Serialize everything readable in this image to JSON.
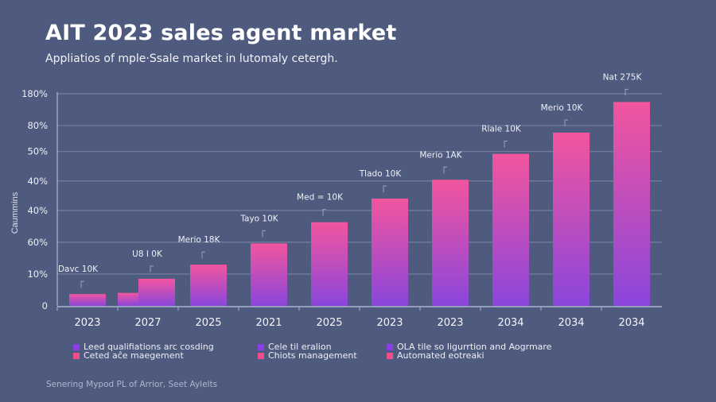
{
  "header": {
    "title": "AIT 2023 sales agent market",
    "subtitle": "Appliatios of mple·Ssale market in lutomaly cetergh."
  },
  "footer": {
    "text": "Senering Mypod PL of Arrior, Seet Aylelts"
  },
  "colors": {
    "background": "#4f5b7e",
    "bar_top": "#f2559e",
    "bar_bottom": "#8a46dc",
    "grid": "#7b86a6",
    "legend_purple": "#8a3fe6",
    "legend_pink": "#f24d8c"
  },
  "legend": [
    {
      "items": [
        {
          "label": "Leed qualifiations arc cosding",
          "color": "#8a3fe6"
        },
        {
          "label": "Ceted aĉe maegement",
          "color": "#f24d8c"
        }
      ]
    },
    {
      "items": [
        {
          "label": "Cele til eralion",
          "color": "#8a3fe6"
        },
        {
          "label": "Chiots management",
          "color": "#f24d8c"
        }
      ]
    },
    {
      "items": [
        {
          "label": "OLA tile so Iigurrtion and Aogrmare",
          "color": "#8a3fe6"
        },
        {
          "label": "Automated eotreaki",
          "color": "#f24d8c"
        }
      ]
    }
  ],
  "chart_data": {
    "type": "bar",
    "title": "AIT 2023 sales agent market",
    "subtitle": "Appliatios of mple·Ssale market in lutomaly cetergh.",
    "xlabel": "",
    "ylabel": "Caummins",
    "ylim": [
      0,
      180
    ],
    "grid": true,
    "legend_position": "bottom",
    "y_ticks": [
      {
        "label": "180%",
        "value": 180
      },
      {
        "label": "80%",
        "value": 153
      },
      {
        "label": "50%",
        "value": 131
      },
      {
        "label": "40%",
        "value": 106
      },
      {
        "label": "40%",
        "value": 81
      },
      {
        "label": "60%",
        "value": 54
      },
      {
        "label": "10%",
        "value": 27
      },
      {
        "label": "0",
        "value": 0
      }
    ],
    "categories": [
      "2023",
      "2027",
      "2025",
      "2021",
      "2025",
      "2023",
      "2023",
      "2034",
      "2034",
      "2034"
    ],
    "values": [
      10,
      23,
      35,
      53,
      71,
      91,
      107,
      129,
      147,
      173
    ],
    "extra_bars": [
      {
        "category_index": 1,
        "value": 11,
        "position": "left"
      }
    ],
    "data_labels": [
      "Davc 10K",
      "U8 I 0K",
      "Merio 18K",
      "Tayo 10K",
      "Med = 10K",
      "Tlado 10K",
      "Merio 1AK",
      "Rlale 10K",
      "Merio 10K",
      "Nat 275K"
    ]
  }
}
